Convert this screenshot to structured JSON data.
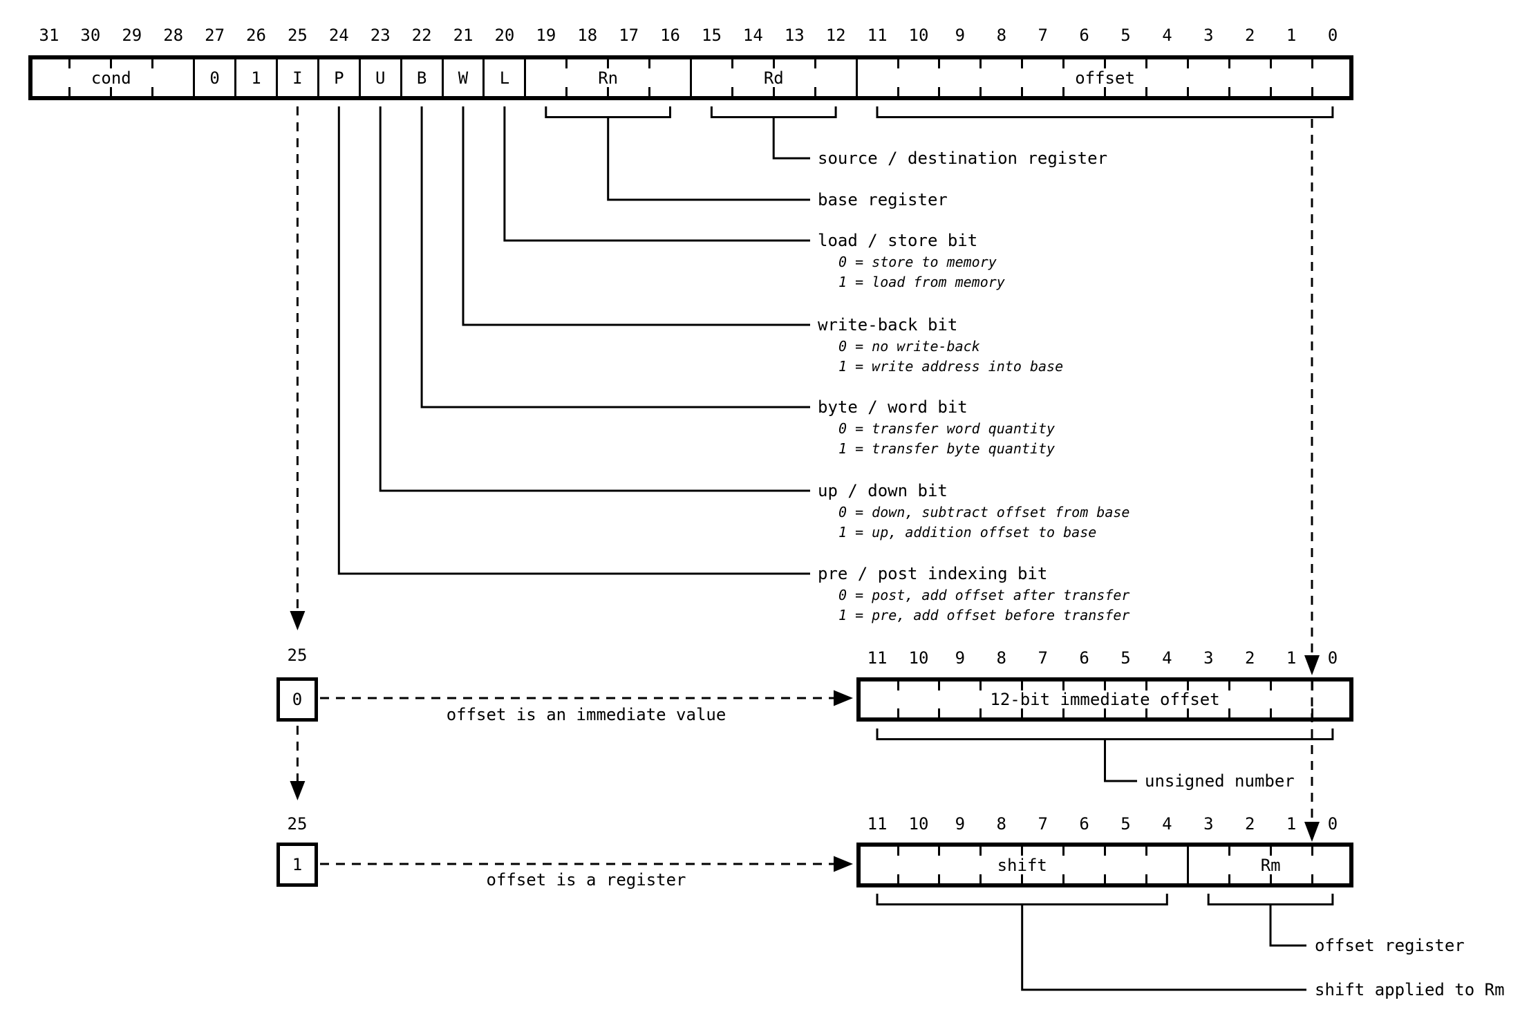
{
  "background": "#ffffff",
  "ink_color": "#000000",
  "top_register": {
    "bit_numbers": [
      "31",
      "30",
      "29",
      "28",
      "27",
      "26",
      "25",
      "24",
      "23",
      "22",
      "21",
      "20",
      "19",
      "18",
      "17",
      "16",
      "15",
      "14",
      "13",
      "12",
      "11",
      "10",
      "9",
      "8",
      "7",
      "6",
      "5",
      "4",
      "3",
      "2",
      "1",
      "0"
    ],
    "fields": [
      {
        "label": "cond",
        "from": 31,
        "to": 28
      },
      {
        "label": "0",
        "from": 27,
        "to": 27
      },
      {
        "label": "1",
        "from": 26,
        "to": 26
      },
      {
        "label": "I",
        "from": 25,
        "to": 25
      },
      {
        "label": "P",
        "from": 24,
        "to": 24
      },
      {
        "label": "U",
        "from": 23,
        "to": 23
      },
      {
        "label": "B",
        "from": 22,
        "to": 22
      },
      {
        "label": "W",
        "from": 21,
        "to": 21
      },
      {
        "label": "L",
        "from": 20,
        "to": 20
      },
      {
        "label": "Rn",
        "from": 19,
        "to": 16
      },
      {
        "label": "Rd",
        "from": 15,
        "to": 12
      },
      {
        "label": "offset",
        "from": 11,
        "to": 0
      }
    ]
  },
  "annotations": [
    {
      "label": "source / destination register",
      "subs": []
    },
    {
      "label": "base register",
      "subs": []
    },
    {
      "label": "load / store bit",
      "subs": [
        "0 = store to memory",
        "1 = load from memory"
      ]
    },
    {
      "label": "write-back bit",
      "subs": [
        "0 = no write-back",
        "1 = write address into base"
      ]
    },
    {
      "label": "byte / word bit",
      "subs": [
        "0 = transfer word quantity",
        "1 = transfer byte quantity"
      ]
    },
    {
      "label": "up / down bit",
      "subs": [
        "0 = down, subtract offset from base",
        "1 = up, addition offset to base"
      ]
    },
    {
      "label": "pre / post indexing bit",
      "subs": [
        "0 = post, add offset after transfer",
        "1 = pre, add offset before transfer"
      ]
    }
  ],
  "immediate_variant": {
    "bit_label": "25",
    "bit_value": "0",
    "arrow_label": "offset is an immediate value",
    "bit_numbers": [
      "11",
      "10",
      "9",
      "8",
      "7",
      "6",
      "5",
      "4",
      "3",
      "2",
      "1",
      "0"
    ],
    "fields": [
      {
        "label": "12-bit immediate offset",
        "from": 11,
        "to": 0
      }
    ],
    "brace_label": "unsigned number"
  },
  "register_variant": {
    "bit_label": "25",
    "bit_value": "1",
    "arrow_label": "offset is a register",
    "bit_numbers": [
      "11",
      "10",
      "9",
      "8",
      "7",
      "6",
      "5",
      "4",
      "3",
      "2",
      "1",
      "0"
    ],
    "fields": [
      {
        "label": "shift",
        "from": 11,
        "to": 4
      },
      {
        "label": "Rm",
        "from": 3,
        "to": 0
      }
    ],
    "rm_brace_label": "offset register",
    "shift_brace_label": "shift applied to Rm"
  }
}
